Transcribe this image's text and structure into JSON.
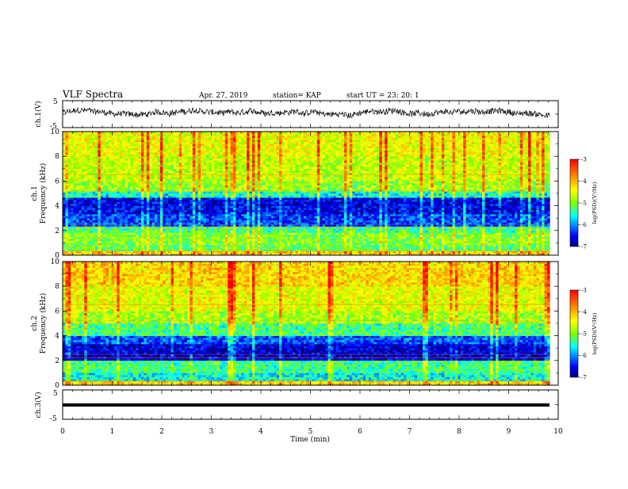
{
  "header": {
    "title": "VLF Spectra",
    "date": "Apr. 27, 2019",
    "station": "station= KAP",
    "start": "start  UT =   23: 20: 1"
  },
  "chart_data": [
    {
      "type": "line",
      "panel": "ch1-waveform",
      "ylabel": "ch.1(V)",
      "ylim": [
        -5,
        5
      ],
      "yticks": [
        "5",
        "-5"
      ],
      "xlim": [
        0,
        10
      ],
      "description_values": {
        "x_min": 0,
        "x_max": 9.83,
        "level_approx": 0.5,
        "range_approx": [
          -2.5,
          3.5
        ]
      }
    },
    {
      "type": "heatmap",
      "panel": "ch1-spectrogram",
      "ylabel_line1": "ch.1",
      "ylabel_line2": "Frequency (kHz)",
      "ylim": [
        0,
        10
      ],
      "yticks": [
        "0",
        "2",
        "4",
        "6",
        "8",
        "10"
      ],
      "xlim": [
        0,
        10
      ],
      "bands": [
        {
          "from": 0,
          "to": 0.3,
          "level": -4.2
        },
        {
          "from": 0.3,
          "to": 0.8,
          "level": -5.2
        },
        {
          "from": 0.8,
          "to": 1.8,
          "level": -5.0
        },
        {
          "from": 1.8,
          "to": 2.4,
          "level": -5.3
        },
        {
          "from": 2.4,
          "to": 3.3,
          "level": -6.3
        },
        {
          "from": 3.3,
          "to": 4.6,
          "level": -6.6
        },
        {
          "from": 4.6,
          "to": 5.2,
          "level": -5.6
        },
        {
          "from": 5.2,
          "to": 6.0,
          "level": -4.9
        },
        {
          "from": 6.0,
          "to": 8.0,
          "level": -4.7
        },
        {
          "from": 8.0,
          "to": 10.0,
          "level": -4.5
        }
      ],
      "colorbar": {
        "label": "log(PSD)(V²/Hz)",
        "ticks": [
          "-3",
          "-4",
          "-5",
          "-6",
          "-7"
        ],
        "range": [
          -7,
          -3
        ]
      }
    },
    {
      "type": "heatmap",
      "panel": "ch2-spectrogram",
      "ylabel_line1": "ch.2",
      "ylabel_line2": "Frequency (kHz)",
      "ylim": [
        0,
        10
      ],
      "yticks": [
        "0",
        "2",
        "4",
        "6",
        "8",
        "10"
      ],
      "xlim": [
        0,
        10
      ],
      "bands": [
        {
          "from": 0,
          "to": 0.3,
          "level": -4.2
        },
        {
          "from": 0.3,
          "to": 1.0,
          "level": -5.6
        },
        {
          "from": 1.0,
          "to": 2.0,
          "level": -5.3
        },
        {
          "from": 2.0,
          "to": 3.3,
          "level": -6.7
        },
        {
          "from": 3.3,
          "to": 4.0,
          "level": -6.2
        },
        {
          "from": 4.0,
          "to": 5.0,
          "level": -5.3
        },
        {
          "from": 5.0,
          "to": 6.0,
          "level": -4.8
        },
        {
          "from": 6.0,
          "to": 8.0,
          "level": -4.5
        },
        {
          "from": 8.0,
          "to": 10.0,
          "level": -4.2
        }
      ],
      "colorbar": {
        "label": "log(PSD)(V²/Hz)",
        "ticks": [
          "-3",
          "-4",
          "-5",
          "-6",
          "-7"
        ],
        "range": [
          -7,
          -3
        ]
      }
    },
    {
      "type": "line",
      "panel": "ch3-waveform",
      "ylabel": "ch.3(V)",
      "ylim": [
        -5,
        5
      ],
      "yticks": [
        "5",
        "-5"
      ],
      "xlim": [
        0,
        10
      ],
      "xlabel": "Time (min)",
      "xticks": [
        "0",
        "1",
        "2",
        "3",
        "4",
        "5",
        "6",
        "7",
        "8",
        "9",
        "10"
      ],
      "description_values": {
        "x_min": 0,
        "x_max": 9.83,
        "level_approx": 0
      }
    }
  ],
  "colors": {
    "axis": "#000000",
    "waveform": "#000000",
    "colormap": [
      "#00007f",
      "#0000ff",
      "#00ffff",
      "#7fff00",
      "#ffff00",
      "#ff7f00",
      "#ff0000"
    ]
  }
}
